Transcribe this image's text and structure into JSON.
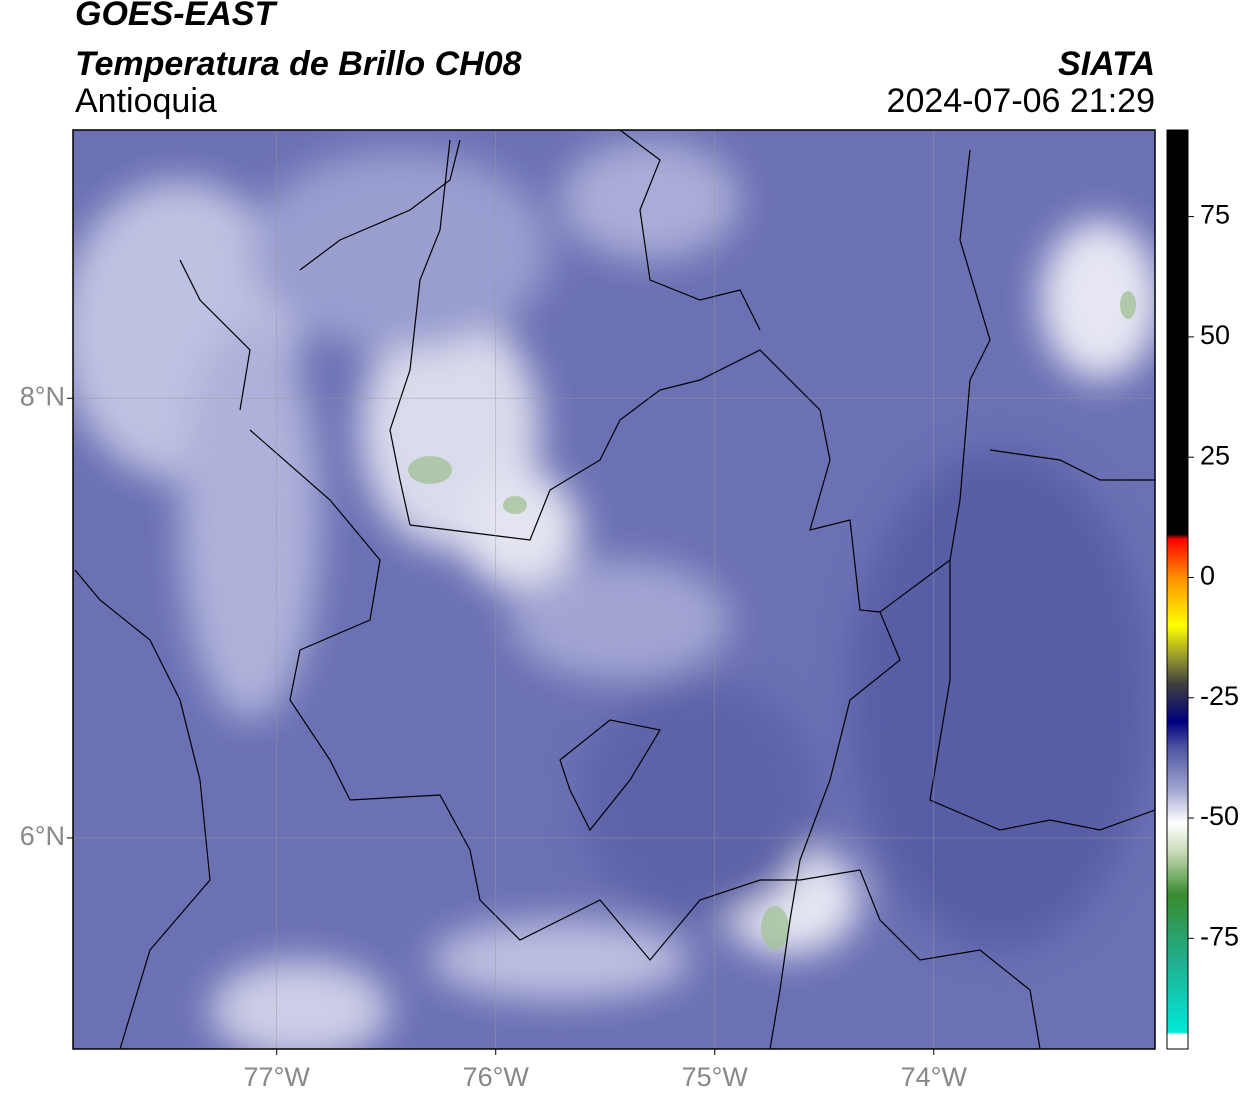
{
  "header": {
    "satellite": "GOES-EAST",
    "product": "Temperatura de Brillo CH08",
    "region": "Antioquia",
    "source": "SIATA",
    "datetime": "2024-07-06 21:29"
  },
  "map": {
    "xlim": [
      -77.93,
      -72.99
    ],
    "ylim": [
      5.04,
      9.22
    ],
    "xticks": [
      {
        "value": -77,
        "label": "77°W"
      },
      {
        "value": -76,
        "label": "76°W"
      },
      {
        "value": -75,
        "label": "75°W"
      },
      {
        "value": -74,
        "label": "74°W"
      }
    ],
    "yticks": [
      {
        "value": 6,
        "label": "6°N"
      },
      {
        "value": 8,
        "label": "8°N"
      }
    ],
    "grid": true
  },
  "colorbar": {
    "lim": [
      -98,
      93
    ],
    "ticks": [
      -75,
      -50,
      -25,
      0,
      25,
      50,
      75
    ],
    "stops": [
      {
        "value": -98,
        "color": "#ffffff"
      },
      {
        "value": -95,
        "color": "#ffffff"
      },
      {
        "value": -94.5,
        "color": "#00e8d8"
      },
      {
        "value": -80,
        "color": "#20b090"
      },
      {
        "value": -66,
        "color": "#3a8a30"
      },
      {
        "value": -57,
        "color": "#c8dcb8"
      },
      {
        "value": -51,
        "color": "#ffffff"
      },
      {
        "value": -44,
        "color": "#a0a4d0"
      },
      {
        "value": -35,
        "color": "#4a50a0"
      },
      {
        "value": -30,
        "color": "#000080"
      },
      {
        "value": -22,
        "color": "#404040"
      },
      {
        "value": -17,
        "color": "#909030"
      },
      {
        "value": -10,
        "color": "#ffff00"
      },
      {
        "value": 0,
        "color": "#ff9000"
      },
      {
        "value": 8,
        "color": "#ff0000"
      },
      {
        "value": 9,
        "color": "#000000"
      },
      {
        "value": 93,
        "color": "#000000"
      }
    ]
  }
}
